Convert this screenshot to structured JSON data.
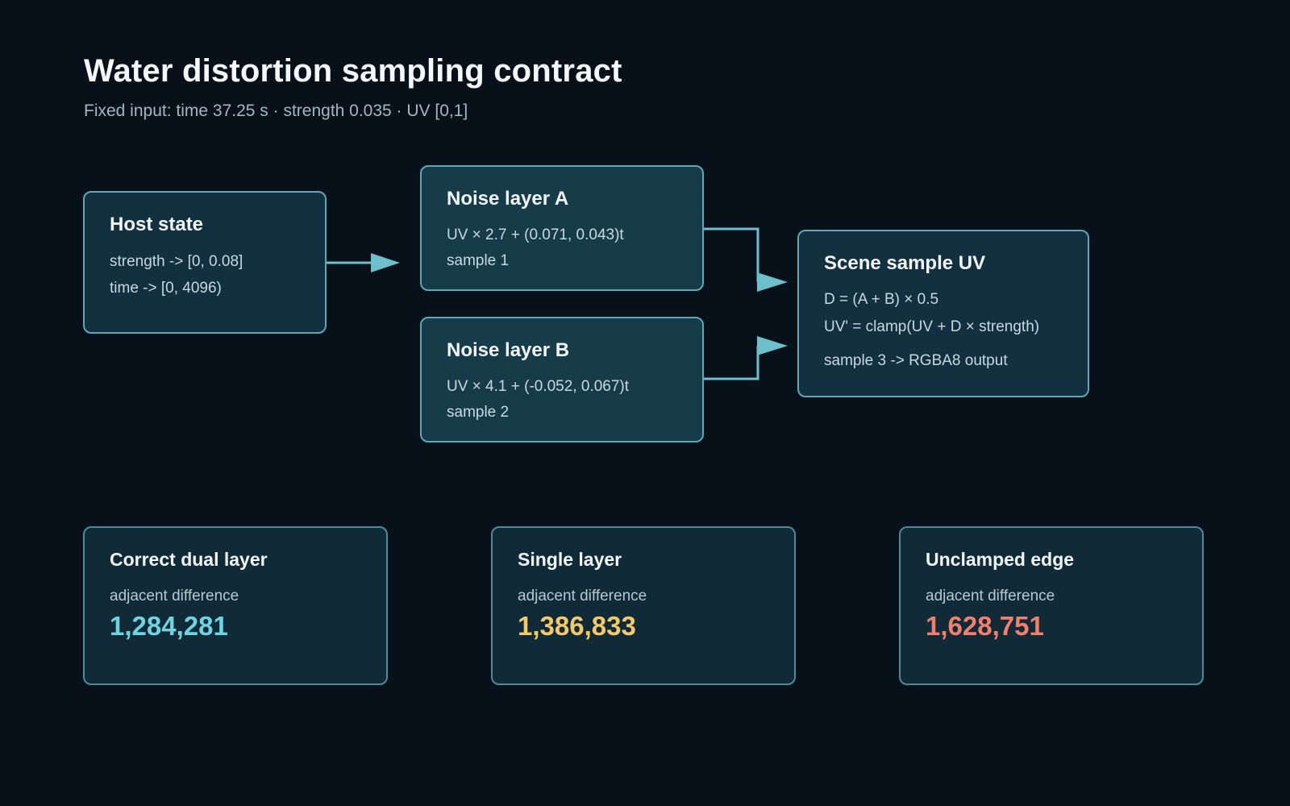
{
  "title": "Water distortion sampling contract",
  "subtitle": "Fixed input: time 37.25 s · strength 0.035 · UV [0,1]",
  "nodes": {
    "host": {
      "title": "Host state",
      "lines": [
        "strength -> [0, 0.08]",
        "time -> [0, 4096)"
      ]
    },
    "noise_a": {
      "title": "Noise layer A",
      "lines": [
        "UV × 2.7 + (0.071, 0.043)t",
        "sample 1"
      ]
    },
    "noise_b": {
      "title": "Noise layer B",
      "lines": [
        "UV × 4.1 + (-0.052, 0.067)t",
        "sample 2"
      ]
    },
    "scene_uv": {
      "title": "Scene sample UV",
      "lines": [
        "D = (A + B) × 0.5",
        "UV' = clamp(UV + D × strength)",
        "sample 3 -> RGBA8 output"
      ]
    }
  },
  "cards": [
    {
      "title": "Correct dual layer",
      "label": "adjacent difference",
      "value": "1,284,281",
      "color": "#6fd3e0"
    },
    {
      "title": "Single layer",
      "label": "adjacent difference",
      "value": "1,386,833",
      "color": "#f4c96b"
    },
    {
      "title": "Unclamped edge",
      "label": "adjacent difference",
      "value": "1,628,751",
      "color": "#f07f6e"
    }
  ],
  "colors": {
    "background": "#08111a",
    "node_border": "#5ea7b5",
    "arrow": "#6dbfcc"
  }
}
